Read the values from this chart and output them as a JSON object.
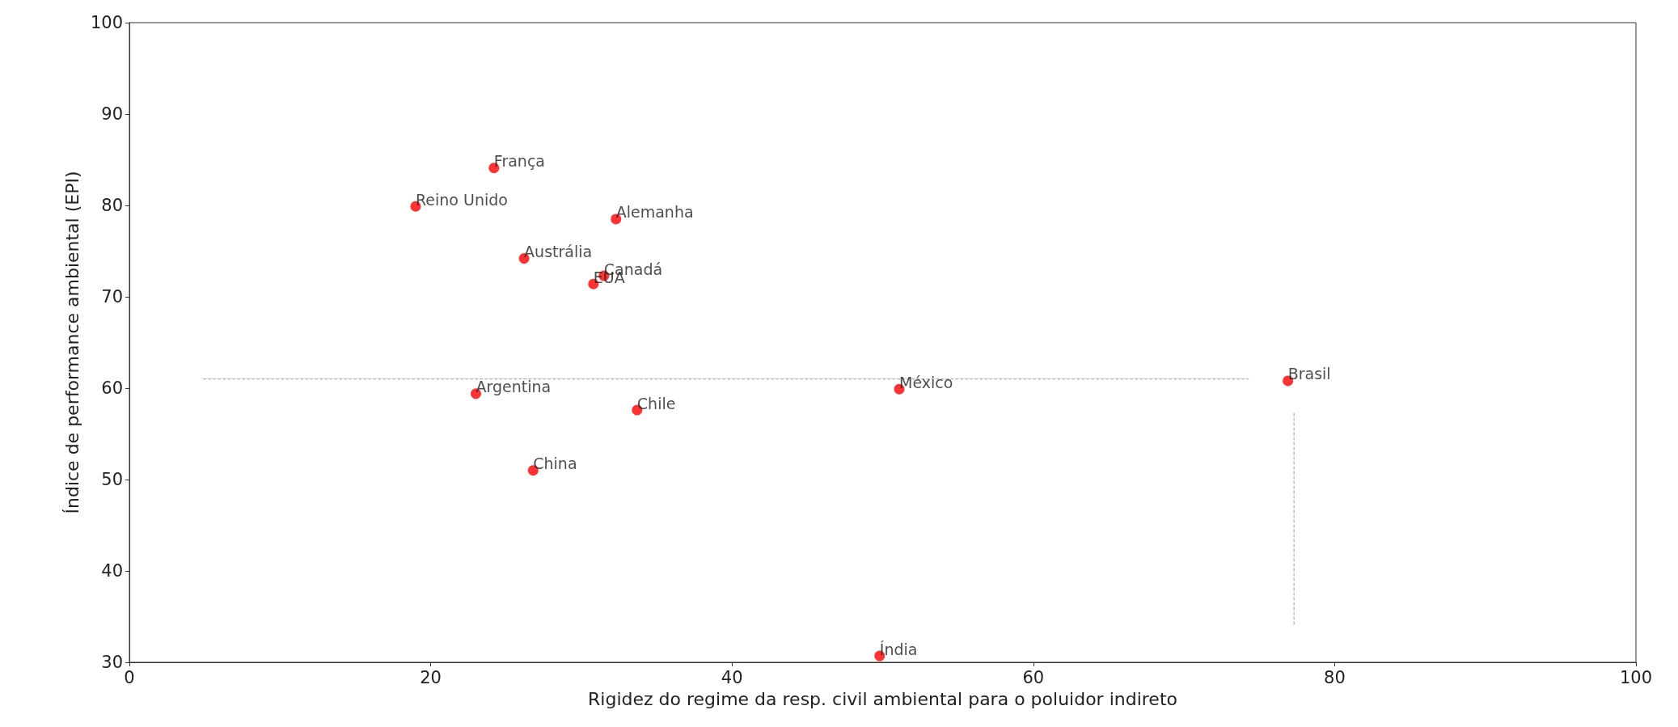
{
  "chart_data": {
    "type": "scatter",
    "xlabel": "Rigidez do regime da resp. civil ambiental para o poluidor indireto",
    "ylabel": "Índice de performance ambiental (EPI)",
    "xlim": [
      0,
      100
    ],
    "xticks": [
      0,
      20,
      40,
      60,
      80,
      100
    ],
    "ylim": [
      30,
      100
    ],
    "yticks": [
      30,
      40,
      50,
      60,
      70,
      80,
      90,
      100
    ],
    "grid": false,
    "marker": "circle",
    "series": [
      {
        "color": "#ff0000",
        "x": [
          24.2,
          19.0,
          32.3,
          26.2,
          31.5,
          30.8,
          23.0,
          51.1,
          76.9,
          33.7,
          26.8,
          49.8
        ],
        "values": [
          84.1,
          79.9,
          78.5,
          74.2,
          72.3,
          71.4,
          59.4,
          59.9,
          60.8,
          57.6,
          51.0,
          30.7
        ]
      },
      {
        "type": "line",
        "color": "#999999",
        "line_style": "dashed",
        "marker": "none",
        "x": [
          4.9,
          74.3
        ],
        "values": [
          61.0,
          61.0
        ]
      },
      {
        "type": "line",
        "color": "#999999",
        "line_style": "dashed",
        "marker": "none",
        "x": [
          77.3,
          77.3
        ],
        "values": [
          57.3,
          34.1
        ]
      }
    ],
    "annotations": [
      {
        "text": "França",
        "x": 24.2,
        "y": 84.1
      },
      {
        "text": "Reino Unido",
        "x": 19.0,
        "y": 79.9
      },
      {
        "text": "Alemanha",
        "x": 32.3,
        "y": 78.5
      },
      {
        "text": "Austrália",
        "x": 26.2,
        "y": 74.2
      },
      {
        "text": "Canadá",
        "x": 31.5,
        "y": 72.3
      },
      {
        "text": "EUA",
        "x": 30.8,
        "y": 71.4
      },
      {
        "text": "Argentina",
        "x": 23.0,
        "y": 59.4
      },
      {
        "text": "México",
        "x": 51.1,
        "y": 59.9
      },
      {
        "text": "Brasil",
        "x": 76.9,
        "y": 60.8
      },
      {
        "text": "Chile",
        "x": 33.7,
        "y": 57.6
      },
      {
        "text": "China",
        "x": 26.8,
        "y": 51.0
      },
      {
        "text": "Índia",
        "x": 49.8,
        "y": 30.7
      }
    ]
  }
}
